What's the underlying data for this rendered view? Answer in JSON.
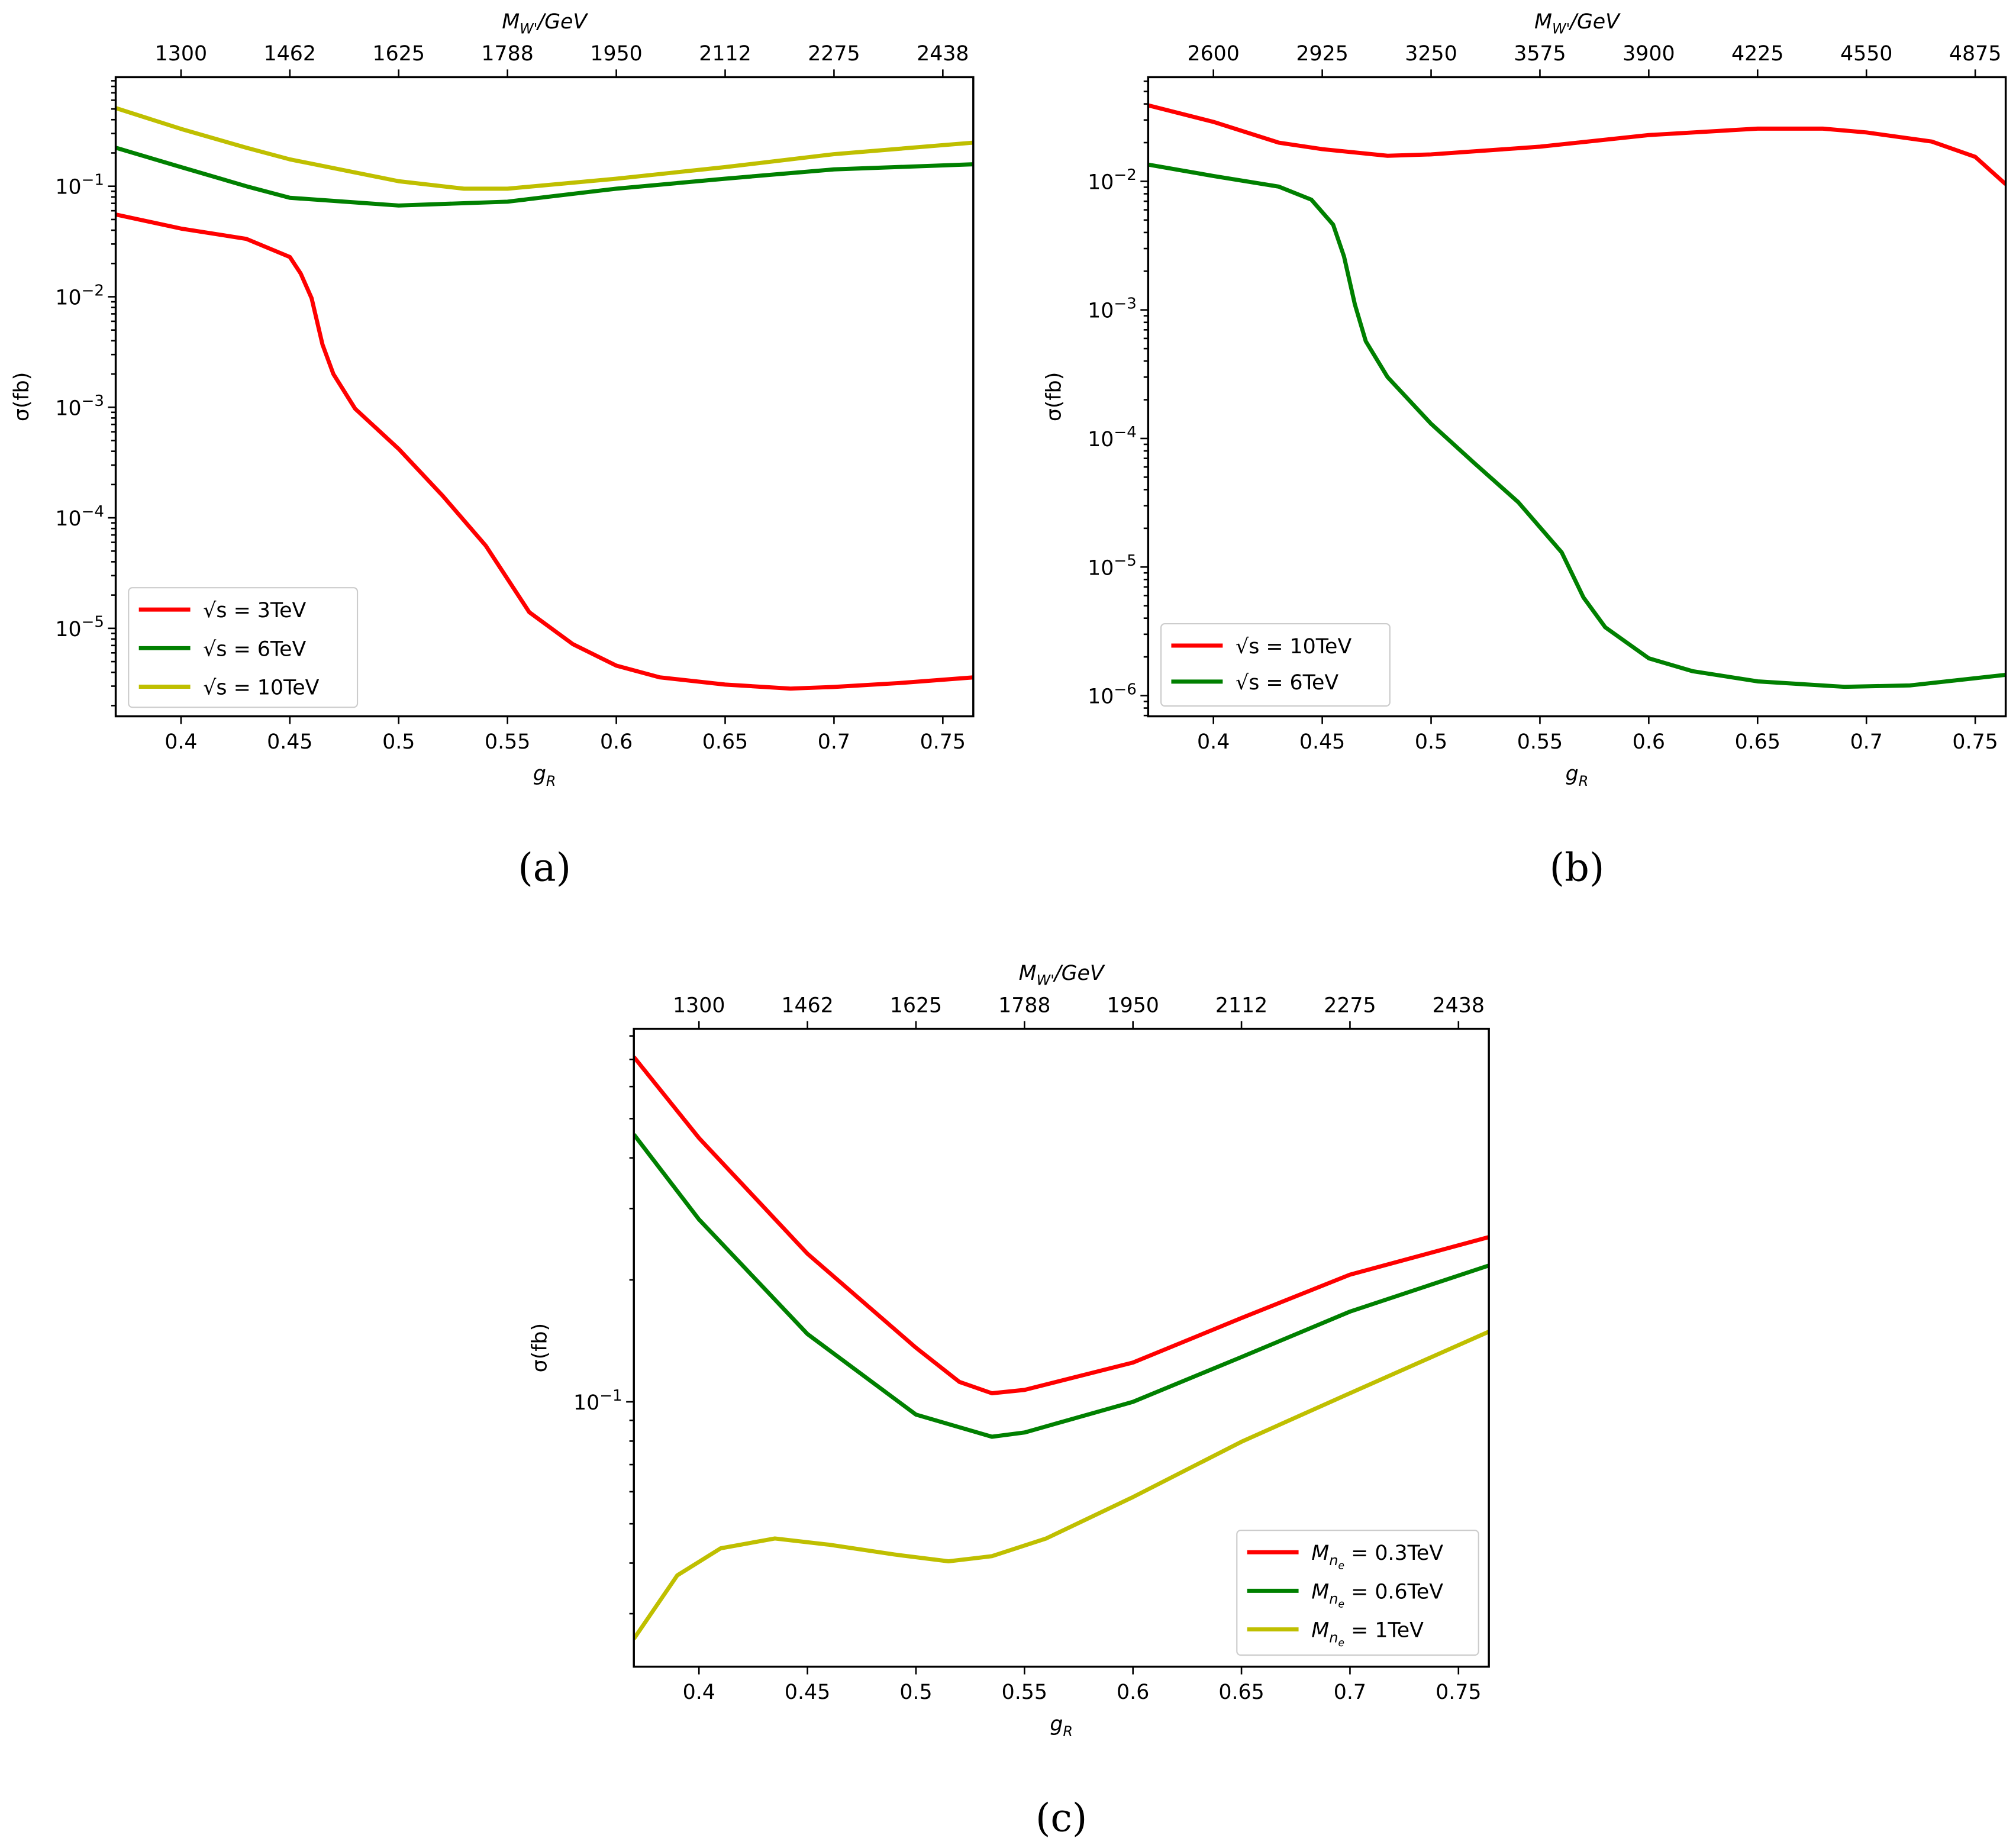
{
  "figure_title": "",
  "chart_data": [
    {
      "id": "a",
      "type": "line",
      "caption": "(a)",
      "title": "",
      "xlabel": "g_R",
      "ylabel": "σ(fb)",
      "top_xlabel": "M_W'/GeV",
      "yscale": "log",
      "xlim": [
        0.37,
        0.764
      ],
      "ylim": [
        1.6e-06,
        0.97
      ],
      "x_ticks": [
        0.4,
        0.45,
        0.5,
        0.55,
        0.6,
        0.65,
        0.7,
        0.75
      ],
      "x_tick_labels": [
        "0.4",
        "0.45",
        "0.5",
        "0.55",
        "0.6",
        "0.65",
        "0.7",
        "0.75"
      ],
      "top_ticks": [
        0.4,
        0.45,
        0.5,
        0.55,
        0.6,
        0.65,
        0.7,
        0.75
      ],
      "top_tick_labels": [
        "1300",
        "1462",
        "1625",
        "1788",
        "1950",
        "2112",
        "2275",
        "2438"
      ],
      "y_ticks": [
        0.1,
        0.01,
        0.001,
        0.0001,
        1e-05
      ],
      "y_tick_labels": [
        "10^-1",
        "10^-2",
        "10^-3",
        "10^-4",
        "10^-5"
      ],
      "grid": false,
      "legend_position": "lower-left",
      "series": [
        {
          "name": "√s = 3TeV",
          "color": "#ff0000",
          "x": [
            0.37,
            0.4,
            0.43,
            0.45,
            0.455,
            0.46,
            0.465,
            0.47,
            0.48,
            0.5,
            0.52,
            0.54,
            0.55,
            0.56,
            0.58,
            0.6,
            0.62,
            0.65,
            0.68,
            0.7,
            0.73,
            0.764
          ],
          "y": [
            0.0555,
            0.0414,
            0.0334,
            0.0229,
            0.0162,
            0.0097,
            0.0037,
            0.002,
            0.00097,
            0.00042,
            0.00016,
            5.6e-05,
            2.8e-05,
            1.4e-05,
            7.2e-06,
            4.6e-06,
            3.6e-06,
            3.1e-06,
            2.85e-06,
            2.95e-06,
            3.2e-06,
            3.6e-06
          ]
        },
        {
          "name": "√s = 6TeV",
          "color": "#008000",
          "x": [
            0.37,
            0.4,
            0.43,
            0.45,
            0.5,
            0.55,
            0.6,
            0.65,
            0.7,
            0.764
          ],
          "y": [
            0.223,
            0.149,
            0.1,
            0.0786,
            0.0669,
            0.0725,
            0.095,
            0.117,
            0.142,
            0.158
          ]
        },
        {
          "name": "√s = 10TeV",
          "color": "#bfbf00",
          "x": [
            0.37,
            0.4,
            0.43,
            0.45,
            0.5,
            0.53,
            0.55,
            0.6,
            0.65,
            0.7,
            0.764
          ],
          "y": [
            0.51,
            0.33,
            0.223,
            0.175,
            0.111,
            0.095,
            0.095,
            0.117,
            0.149,
            0.195,
            0.248
          ]
        }
      ]
    },
    {
      "id": "b",
      "type": "line",
      "caption": "(b)",
      "title": "",
      "xlabel": "g_R",
      "ylabel": "σ(fb)",
      "top_xlabel": "M_W'/GeV",
      "yscale": "log",
      "xlim": [
        0.37,
        0.764
      ],
      "ylim": [
        6.9e-07,
        0.0646
      ],
      "x_ticks": [
        0.4,
        0.45,
        0.5,
        0.55,
        0.6,
        0.65,
        0.7,
        0.75
      ],
      "x_tick_labels": [
        "0.4",
        "0.45",
        "0.5",
        "0.55",
        "0.6",
        "0.65",
        "0.7",
        "0.75"
      ],
      "top_ticks": [
        0.4,
        0.45,
        0.5,
        0.55,
        0.6,
        0.65,
        0.7,
        0.75
      ],
      "top_tick_labels": [
        "2600",
        "2925",
        "3250",
        "3575",
        "3900",
        "4225",
        "4550",
        "4875"
      ],
      "y_ticks": [
        0.01,
        0.001,
        0.0001,
        1e-05,
        1e-06
      ],
      "y_tick_labels": [
        "10^-2",
        "10^-3",
        "10^-4",
        "10^-5",
        "10^-6"
      ],
      "grid": false,
      "legend_position": "lower-left",
      "series": [
        {
          "name": "√s = 10TeV",
          "color": "#ff0000",
          "x": [
            0.37,
            0.4,
            0.43,
            0.45,
            0.48,
            0.5,
            0.55,
            0.6,
            0.65,
            0.68,
            0.7,
            0.73,
            0.75,
            0.764
          ],
          "y": [
            0.039,
            0.029,
            0.02,
            0.0178,
            0.0158,
            0.0162,
            0.0186,
            0.0229,
            0.0257,
            0.0257,
            0.024,
            0.0204,
            0.0155,
            0.0095
          ]
        },
        {
          "name": "√s = 6TeV",
          "color": "#008000",
          "x": [
            0.37,
            0.4,
            0.43,
            0.445,
            0.455,
            0.46,
            0.465,
            0.47,
            0.48,
            0.5,
            0.52,
            0.54,
            0.56,
            0.57,
            0.58,
            0.6,
            0.62,
            0.65,
            0.69,
            0.72,
            0.764
          ],
          "y": [
            0.0135,
            0.011,
            0.0091,
            0.0072,
            0.0046,
            0.0026,
            0.0011,
            0.00057,
            0.0003,
            0.00013,
            6.4e-05,
            3.2e-05,
            1.3e-05,
            5.8e-06,
            3.4e-06,
            1.95e-06,
            1.55e-06,
            1.29e-06,
            1.17e-06,
            1.2e-06,
            1.45e-06
          ]
        }
      ]
    },
    {
      "id": "c",
      "type": "line",
      "caption": "(c)",
      "title": "",
      "xlabel": "g_R",
      "ylabel": "σ(fb)",
      "top_xlabel": "M_W'/GeV",
      "yscale": "log",
      "xlim": [
        0.37,
        0.764
      ],
      "ylim": [
        0.0222,
        0.833
      ],
      "x_ticks": [
        0.4,
        0.45,
        0.5,
        0.55,
        0.6,
        0.65,
        0.7,
        0.75
      ],
      "x_tick_labels": [
        "0.4",
        "0.45",
        "0.5",
        "0.55",
        "0.6",
        "0.65",
        "0.7",
        "0.75"
      ],
      "top_ticks": [
        0.4,
        0.45,
        0.5,
        0.55,
        0.6,
        0.65,
        0.7,
        0.75
      ],
      "top_tick_labels": [
        "1300",
        "1462",
        "1625",
        "1788",
        "1950",
        "2112",
        "2275",
        "2438"
      ],
      "y_ticks": [
        0.1
      ],
      "y_tick_labels": [
        "10^-1"
      ],
      "grid": false,
      "legend_position": "lower-right",
      "series": [
        {
          "name": "M_ne = 0.3TeV",
          "color": "#ff0000",
          "x": [
            0.37,
            0.4,
            0.45,
            0.5,
            0.52,
            0.535,
            0.55,
            0.6,
            0.65,
            0.7,
            0.764
          ],
          "y": [
            0.71,
            0.448,
            0.232,
            0.136,
            0.112,
            0.105,
            0.107,
            0.125,
            0.161,
            0.206,
            0.255
          ]
        },
        {
          "name": "M_ne = 0.6TeV",
          "color": "#008000",
          "x": [
            0.37,
            0.4,
            0.45,
            0.5,
            0.535,
            0.55,
            0.6,
            0.65,
            0.7,
            0.764
          ],
          "y": [
            0.457,
            0.282,
            0.147,
            0.093,
            0.082,
            0.084,
            0.1,
            0.129,
            0.167,
            0.217
          ]
        },
        {
          "name": "M_ne = 1TeV",
          "color": "#bfbf00",
          "x": [
            0.37,
            0.39,
            0.41,
            0.435,
            0.46,
            0.49,
            0.515,
            0.535,
            0.56,
            0.6,
            0.65,
            0.7,
            0.764
          ],
          "y": [
            0.026,
            0.0373,
            0.0435,
            0.046,
            0.0444,
            0.042,
            0.0404,
            0.0416,
            0.046,
            0.0582,
            0.0797,
            0.105,
            0.149
          ]
        }
      ]
    }
  ]
}
